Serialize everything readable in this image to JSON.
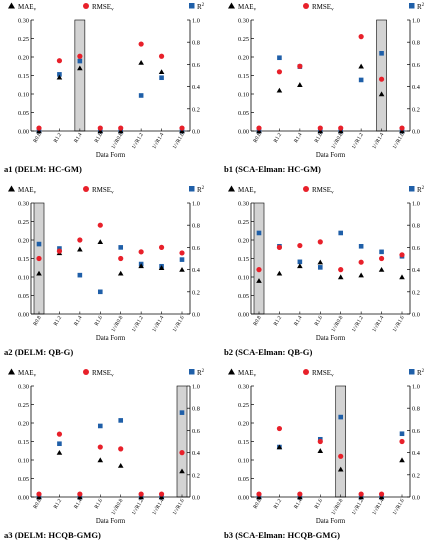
{
  "legend": {
    "mae": "MAE",
    "rmse": "RMSE",
    "r2": "R",
    "sub": "v",
    "sup": "2"
  },
  "common": {
    "xlabel": "Data Form",
    "left_ylim": [
      0,
      0.3
    ],
    "right_ylim": [
      0,
      1.0
    ],
    "left_ticks": [
      "0.00",
      "0.05",
      "0.10",
      "0.15",
      "0.20",
      "0.25",
      "0.30"
    ],
    "right_ticks": [
      "0.0",
      "0.2",
      "0.4",
      "0.6",
      "0.8",
      "1.0"
    ],
    "categories": [
      "R0.8",
      "R1.2",
      "R1.4",
      "R1.6",
      "1/√R0.8",
      "1/√R1.2",
      "1/√R1.4",
      "1/√R1.6"
    ]
  },
  "colors": {
    "mae": "#000000",
    "rmse": "#e8202a",
    "r2": "#1f5fa8",
    "shade": "#d3d3d3"
  },
  "chart_data": [
    {
      "type": "scatter",
      "caption": "a1 (DELM: HC-GM)",
      "shaded": [
        2
      ],
      "series": [
        {
          "name": "MAE_v",
          "axis": "left",
          "values": [
            0.0,
            0.145,
            0.17,
            0.0,
            0.0,
            0.185,
            0.16,
            0.0
          ]
        },
        {
          "name": "RMSE_v",
          "axis": "left",
          "values": [
            0.008,
            0.19,
            0.202,
            0.008,
            0.008,
            0.235,
            0.202,
            0.008
          ]
        },
        {
          "name": "R2",
          "axis": "right",
          "values": [
            0.0,
            0.51,
            0.63,
            0.0,
            0.0,
            0.32,
            0.48,
            0.0
          ]
        }
      ]
    },
    {
      "type": "scatter",
      "caption": "b1 (SCA-Elman: HC-GM)",
      "shaded": [
        6
      ],
      "series": [
        {
          "name": "MAE_v",
          "axis": "left",
          "values": [
            0.0,
            0.11,
            0.125,
            0.0,
            0.0,
            0.175,
            0.1,
            0.0
          ]
        },
        {
          "name": "RMSE_v",
          "axis": "left",
          "values": [
            0.008,
            0.16,
            0.175,
            0.008,
            0.008,
            0.255,
            0.14,
            0.008
          ]
        },
        {
          "name": "R2",
          "axis": "right",
          "values": [
            0.0,
            0.66,
            0.58,
            0.0,
            0.0,
            0.46,
            0.7,
            0.0
          ]
        }
      ]
    },
    {
      "type": "scatter",
      "caption": "a2 (DELM: QB-G)",
      "shaded": [
        0
      ],
      "series": [
        {
          "name": "MAE_v",
          "axis": "left",
          "values": [
            0.11,
            0.165,
            0.175,
            0.195,
            0.11,
            0.13,
            0.125,
            0.12
          ]
        },
        {
          "name": "RMSE_v",
          "axis": "left",
          "values": [
            0.15,
            0.17,
            0.2,
            0.24,
            0.15,
            0.168,
            0.18,
            0.165
          ]
        },
        {
          "name": "R2",
          "axis": "right",
          "values": [
            0.63,
            0.59,
            0.35,
            0.2,
            0.6,
            0.45,
            0.43,
            0.49
          ]
        }
      ]
    },
    {
      "type": "scatter",
      "caption": "b2 (SCA-Elman: QB-G)",
      "shaded": [
        0
      ],
      "series": [
        {
          "name": "MAE_v",
          "axis": "left",
          "values": [
            0.09,
            0.11,
            0.13,
            0.14,
            0.1,
            0.105,
            0.12,
            0.1
          ]
        },
        {
          "name": "RMSE_v",
          "axis": "left",
          "values": [
            0.12,
            0.18,
            0.185,
            0.195,
            0.12,
            0.14,
            0.15,
            0.16
          ]
        },
        {
          "name": "R2",
          "axis": "right",
          "values": [
            0.73,
            0.61,
            0.47,
            0.42,
            0.73,
            0.61,
            0.56,
            0.52
          ]
        }
      ]
    },
    {
      "type": "scatter",
      "caption": "a3 (DELM: HCQB-GMG)",
      "shaded": [
        7
      ],
      "series": [
        {
          "name": "MAE_v",
          "axis": "left",
          "values": [
            0.0,
            0.12,
            0.0,
            0.1,
            0.085,
            0.0,
            0.0,
            0.07
          ]
        },
        {
          "name": "RMSE_v",
          "axis": "left",
          "values": [
            0.008,
            0.17,
            0.008,
            0.135,
            0.13,
            0.008,
            0.008,
            0.12
          ]
        },
        {
          "name": "R2",
          "axis": "right",
          "values": [
            0.0,
            0.48,
            0.0,
            0.64,
            0.69,
            0.0,
            0.0,
            0.76
          ]
        }
      ]
    },
    {
      "type": "scatter",
      "caption": "b3 (SCA-Elman: HCQB-GMG)",
      "shaded": [
        4
      ],
      "series": [
        {
          "name": "MAE_v",
          "axis": "left",
          "values": [
            0.0,
            0.135,
            0.0,
            0.125,
            0.075,
            0.0,
            0.0,
            0.1
          ]
        },
        {
          "name": "RMSE_v",
          "axis": "left",
          "values": [
            0.008,
            0.185,
            0.008,
            0.15,
            0.11,
            0.008,
            0.008,
            0.15
          ]
        },
        {
          "name": "R2",
          "axis": "right",
          "values": [
            0.0,
            0.45,
            0.0,
            0.52,
            0.72,
            0.0,
            0.0,
            0.57
          ]
        }
      ]
    }
  ]
}
